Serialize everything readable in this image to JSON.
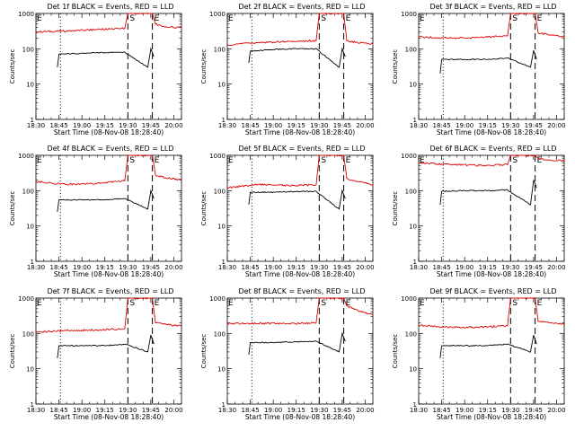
{
  "chart_data": [
    {
      "type": "line",
      "title": "Det 1f BLACK = Events, RED = LLD",
      "xlabel": "Start Time (08-Nov-08 18:28:40)",
      "ylabel": "Counts/sec",
      "xlim": [
        "18:30",
        "20:05"
      ],
      "ylim": [
        1,
        1000
      ],
      "yscale": "log",
      "xticks": [
        "18:30",
        "18:45",
        "19:00",
        "19:15",
        "19:30",
        "19:45",
        "20:00"
      ],
      "yticks": [
        "1",
        "10",
        "100",
        "1000"
      ],
      "markers": [
        {
          "label": "",
          "time": "18:46",
          "style": "dotted"
        },
        {
          "label": "S",
          "time": "19:30",
          "style": "dashed"
        },
        {
          "label": "E",
          "time": "19:46",
          "style": "dashed"
        }
      ],
      "series": [
        {
          "color": "#dd0000",
          "x": [
            "18:30",
            "18:50",
            "19:10",
            "19:28",
            "19:30",
            "19:31",
            "19:33",
            "19:46",
            "19:48",
            "19:55",
            "20:05"
          ],
          "y": [
            300,
            320,
            350,
            380,
            1000,
            1000,
            1000,
            1000,
            500,
            420,
            400
          ]
        },
        {
          "color": "#000000",
          "x": [
            "18:44",
            "18:45",
            "19:00",
            "19:15",
            "19:28",
            "19:43",
            "19:45",
            "19:47"
          ],
          "y": [
            30,
            70,
            75,
            78,
            80,
            30,
            100,
            60
          ]
        }
      ]
    },
    {
      "type": "line",
      "title": "Det 2f BLACK = Events, RED = LLD",
      "xlabel": "Start Time (08-Nov-08 18:28:40)",
      "ylabel": "Counts/sec",
      "xlim": [
        "18:30",
        "20:05"
      ],
      "ylim": [
        1,
        1000
      ],
      "yscale": "log",
      "xticks": [
        "18:30",
        "18:45",
        "19:00",
        "19:15",
        "19:30",
        "19:45",
        "20:00"
      ],
      "yticks": [
        "1",
        "10",
        "100",
        "1000"
      ],
      "markers": [
        {
          "label": "",
          "time": "18:46",
          "style": "dotted"
        },
        {
          "label": "S",
          "time": "19:30",
          "style": "dashed"
        },
        {
          "label": "E",
          "time": "19:46",
          "style": "dashed"
        }
      ],
      "series": [
        {
          "color": "#dd0000",
          "x": [
            "18:30",
            "18:50",
            "19:10",
            "19:28",
            "19:30",
            "19:31",
            "19:33",
            "19:46",
            "19:48",
            "19:55",
            "20:05"
          ],
          "y": [
            130,
            150,
            160,
            170,
            1000,
            1000,
            1000,
            1000,
            170,
            150,
            140
          ]
        },
        {
          "color": "#000000",
          "x": [
            "18:44",
            "18:45",
            "19:00",
            "19:15",
            "19:28",
            "19:43",
            "19:45",
            "19:47"
          ],
          "y": [
            40,
            85,
            95,
            100,
            100,
            30,
            100,
            60
          ]
        }
      ]
    },
    {
      "type": "line",
      "title": "Det 3f BLACK = Events, RED = LLD",
      "xlabel": "Start Time (08-Nov-08 18:28:40)",
      "ylabel": "Counts/sec",
      "xlim": [
        "18:30",
        "20:05"
      ],
      "ylim": [
        1,
        1000
      ],
      "yscale": "log",
      "xticks": [
        "18:30",
        "18:45",
        "19:00",
        "19:15",
        "19:30",
        "19:45",
        "20:00"
      ],
      "yticks": [
        "1",
        "10",
        "100",
        "1000"
      ],
      "markers": [
        {
          "label": "",
          "time": "18:46",
          "style": "dotted"
        },
        {
          "label": "S",
          "time": "19:30",
          "style": "dashed"
        },
        {
          "label": "E",
          "time": "19:46",
          "style": "dashed"
        }
      ],
      "series": [
        {
          "color": "#dd0000",
          "x": [
            "18:30",
            "18:50",
            "19:10",
            "19:28",
            "19:30",
            "19:31",
            "19:33",
            "19:46",
            "19:48",
            "19:55",
            "20:05"
          ],
          "y": [
            220,
            200,
            210,
            230,
            1000,
            1000,
            1000,
            1000,
            280,
            250,
            220
          ]
        },
        {
          "color": "#000000",
          "x": [
            "18:44",
            "18:45",
            "19:00",
            "19:15",
            "19:28",
            "19:43",
            "19:45",
            "19:47"
          ],
          "y": [
            20,
            50,
            50,
            50,
            55,
            30,
            90,
            50
          ]
        }
      ]
    },
    {
      "type": "line",
      "title": "Det 4f BLACK = Events, RED = LLD",
      "xlabel": "Start Time (08-Nov-08 18:28:40)",
      "ylabel": "Counts/sec",
      "xlim": [
        "18:30",
        "20:05"
      ],
      "ylim": [
        1,
        1000
      ],
      "yscale": "log",
      "xticks": [
        "18:30",
        "18:45",
        "19:00",
        "19:15",
        "19:30",
        "19:45",
        "20:00"
      ],
      "yticks": [
        "1",
        "10",
        "100",
        "1000"
      ],
      "markers": [
        {
          "label": "",
          "time": "18:46",
          "style": "dotted"
        },
        {
          "label": "S",
          "time": "19:30",
          "style": "dashed"
        },
        {
          "label": "E",
          "time": "19:46",
          "style": "dashed"
        }
      ],
      "series": [
        {
          "color": "#dd0000",
          "x": [
            "18:30",
            "18:50",
            "19:10",
            "19:28",
            "19:30",
            "19:31",
            "19:33",
            "19:46",
            "19:48",
            "19:55",
            "20:05"
          ],
          "y": [
            180,
            150,
            160,
            190,
            1000,
            1000,
            1000,
            1000,
            280,
            230,
            200
          ]
        },
        {
          "color": "#000000",
          "x": [
            "18:44",
            "18:45",
            "19:00",
            "19:15",
            "19:28",
            "19:43",
            "19:45",
            "19:47"
          ],
          "y": [
            25,
            55,
            55,
            55,
            60,
            30,
            100,
            60
          ]
        }
      ]
    },
    {
      "type": "line",
      "title": "Det 5f BLACK = Events, RED = LLD",
      "xlabel": "Start Time (08-Nov-08 18:28:40)",
      "ylabel": "Counts/sec",
      "xlim": [
        "18:30",
        "20:05"
      ],
      "ylim": [
        1,
        1000
      ],
      "yscale": "log",
      "xticks": [
        "18:30",
        "18:45",
        "19:00",
        "19:15",
        "19:30",
        "19:45",
        "20:00"
      ],
      "yticks": [
        "1",
        "10",
        "100",
        "1000"
      ],
      "markers": [
        {
          "label": "",
          "time": "18:46",
          "style": "dotted"
        },
        {
          "label": "S",
          "time": "19:30",
          "style": "dashed"
        },
        {
          "label": "E",
          "time": "19:46",
          "style": "dashed"
        }
      ],
      "series": [
        {
          "color": "#dd0000",
          "x": [
            "18:30",
            "18:50",
            "19:10",
            "19:28",
            "19:30",
            "19:31",
            "19:33",
            "19:46",
            "19:48",
            "19:55",
            "20:05"
          ],
          "y": [
            120,
            150,
            140,
            145,
            1000,
            1000,
            1000,
            1000,
            220,
            180,
            150
          ]
        },
        {
          "color": "#000000",
          "x": [
            "18:44",
            "18:45",
            "19:00",
            "19:15",
            "19:28",
            "19:43",
            "19:45",
            "19:47"
          ],
          "y": [
            40,
            90,
            90,
            95,
            95,
            30,
            100,
            60
          ]
        }
      ]
    },
    {
      "type": "line",
      "title": "Det 6f BLACK = Events, RED = LLD",
      "xlabel": "Start Time (08-Nov-08 18:28:40)",
      "ylabel": "Counts/sec",
      "xlim": [
        "18:30",
        "20:05"
      ],
      "ylim": [
        1,
        1000
      ],
      "yscale": "log",
      "xticks": [
        "18:30",
        "18:45",
        "19:00",
        "19:15",
        "19:30",
        "19:45",
        "20:00"
      ],
      "yticks": [
        "1",
        "10",
        "100",
        "1000"
      ],
      "markers": [
        {
          "label": "",
          "time": "18:46",
          "style": "dotted"
        },
        {
          "label": "S",
          "time": "19:30",
          "style": "dashed"
        },
        {
          "label": "E",
          "time": "19:46",
          "style": "dashed"
        }
      ],
      "series": [
        {
          "color": "#dd0000",
          "x": [
            "18:30",
            "18:50",
            "19:10",
            "19:28",
            "19:30",
            "19:31",
            "19:33",
            "19:46",
            "19:48",
            "19:55",
            "20:05"
          ],
          "y": [
            600,
            550,
            520,
            540,
            1000,
            1000,
            1000,
            1000,
            800,
            750,
            700
          ]
        },
        {
          "color": "#000000",
          "x": [
            "18:44",
            "18:45",
            "19:00",
            "19:15",
            "19:28",
            "19:43",
            "19:45",
            "19:47"
          ],
          "y": [
            40,
            95,
            100,
            100,
            105,
            40,
            200,
            120
          ]
        }
      ]
    },
    {
      "type": "line",
      "title": "Det 7f BLACK = Events, RED = LLD",
      "xlabel": "Start Time (08-Nov-08 18:28:40)",
      "ylabel": "Counts/sec",
      "xlim": [
        "18:30",
        "20:05"
      ],
      "ylim": [
        1,
        1000
      ],
      "yscale": "log",
      "xticks": [
        "18:30",
        "18:45",
        "19:00",
        "19:15",
        "19:30",
        "19:45",
        "20:00"
      ],
      "yticks": [
        "1",
        "10",
        "100",
        "1000"
      ],
      "markers": [
        {
          "label": "",
          "time": "18:46",
          "style": "dotted"
        },
        {
          "label": "S",
          "time": "19:30",
          "style": "dashed"
        },
        {
          "label": "E",
          "time": "19:46",
          "style": "dashed"
        }
      ],
      "series": [
        {
          "color": "#dd0000",
          "x": [
            "18:30",
            "18:50",
            "19:10",
            "19:28",
            "19:30",
            "19:31",
            "19:33",
            "19:46",
            "19:48",
            "19:55",
            "20:05"
          ],
          "y": [
            110,
            120,
            125,
            135,
            1000,
            1000,
            1000,
            1000,
            200,
            180,
            160
          ]
        },
        {
          "color": "#000000",
          "x": [
            "18:44",
            "18:45",
            "19:00",
            "19:15",
            "19:28",
            "19:43",
            "19:45",
            "19:47"
          ],
          "y": [
            20,
            45,
            45,
            45,
            50,
            30,
            90,
            50
          ]
        }
      ]
    },
    {
      "type": "line",
      "title": "Det 8f BLACK = Events, RED = LLD",
      "xlabel": "Start Time (08-Nov-08 18:28:40)",
      "ylabel": "Counts/sec",
      "xlim": [
        "18:30",
        "20:05"
      ],
      "ylim": [
        1,
        1000
      ],
      "yscale": "log",
      "xticks": [
        "18:30",
        "18:45",
        "19:00",
        "19:15",
        "19:30",
        "19:45",
        "20:00"
      ],
      "yticks": [
        "1",
        "10",
        "100",
        "1000"
      ],
      "markers": [
        {
          "label": "",
          "time": "18:46",
          "style": "dotted"
        },
        {
          "label": "S",
          "time": "19:30",
          "style": "dashed"
        },
        {
          "label": "E",
          "time": "19:46",
          "style": "dashed"
        }
      ],
      "series": [
        {
          "color": "#dd0000",
          "x": [
            "18:30",
            "18:50",
            "19:10",
            "19:28",
            "19:30",
            "19:31",
            "19:33",
            "19:46",
            "19:48",
            "19:55",
            "20:05"
          ],
          "y": [
            190,
            190,
            190,
            200,
            1000,
            1000,
            1000,
            1000,
            600,
            450,
            330
          ]
        },
        {
          "color": "#000000",
          "x": [
            "18:44",
            "18:45",
            "19:00",
            "19:15",
            "19:28",
            "19:43",
            "19:45",
            "19:47"
          ],
          "y": [
            25,
            55,
            55,
            58,
            60,
            30,
            100,
            60
          ]
        }
      ]
    },
    {
      "type": "line",
      "title": "Det 9f BLACK = Events, RED = LLD",
      "xlabel": "Start Time (08-Nov-08 18:28:40)",
      "ylabel": "Counts/sec",
      "xlim": [
        "18:30",
        "20:05"
      ],
      "ylim": [
        1,
        1000
      ],
      "yscale": "log",
      "xticks": [
        "18:30",
        "18:45",
        "19:00",
        "19:15",
        "19:30",
        "19:45",
        "20:00"
      ],
      "yticks": [
        "1",
        "10",
        "100",
        "1000"
      ],
      "markers": [
        {
          "label": "",
          "time": "18:46",
          "style": "dotted"
        },
        {
          "label": "S",
          "time": "19:30",
          "style": "dashed"
        },
        {
          "label": "E",
          "time": "19:46",
          "style": "dashed"
        }
      ],
      "series": [
        {
          "color": "#dd0000",
          "x": [
            "18:30",
            "18:50",
            "19:10",
            "19:28",
            "19:30",
            "19:31",
            "19:33",
            "19:46",
            "19:48",
            "19:55",
            "20:05"
          ],
          "y": [
            170,
            150,
            150,
            165,
            1000,
            1000,
            1000,
            1000,
            220,
            200,
            180
          ]
        },
        {
          "color": "#000000",
          "x": [
            "18:44",
            "18:45",
            "19:00",
            "19:15",
            "19:28",
            "19:43",
            "19:45",
            "19:47"
          ],
          "y": [
            20,
            45,
            45,
            45,
            50,
            30,
            90,
            50
          ]
        }
      ]
    }
  ]
}
